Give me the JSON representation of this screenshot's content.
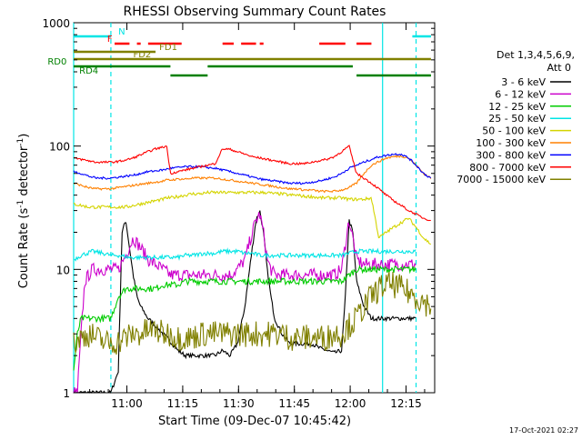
{
  "chart_data": {
    "type": "line",
    "title": "RHESSI Observing Summary Count Rates",
    "xlabel": "Start Time (09-Dec-07 10:45:42)",
    "ylabel_main": "Count Rate (s",
    "ylabel_sup1": "-1",
    "ylabel_mid": " detector",
    "ylabel_sup2": "-1",
    "ylabel_end": ")",
    "x_unit": "minutes after 10:45:42",
    "xlim": [
      0,
      97
    ],
    "ylim": [
      1,
      1000
    ],
    "yscale": "log",
    "x_ticks": [
      {
        "value": 14.3,
        "label": "11:00"
      },
      {
        "value": 29.3,
        "label": "11:15"
      },
      {
        "value": 44.3,
        "label": "11:30"
      },
      {
        "value": 59.3,
        "label": "11:45"
      },
      {
        "value": 74.3,
        "label": "12:00"
      },
      {
        "value": 89.3,
        "label": "12:15"
      }
    ],
    "y_ticks": [
      {
        "value": 1,
        "label": "1"
      },
      {
        "value": 10,
        "label": "10"
      },
      {
        "value": 100,
        "label": "100"
      },
      {
        "value": 1000,
        "label": "1000"
      }
    ],
    "legend": {
      "header1": "Det 1,3,4,5,6,9,",
      "header2": "Att 0",
      "position": "right"
    },
    "footer_timestamp": "17-Oct-2021 02:27",
    "series": [
      {
        "name": "3 - 6 keV",
        "color": "#000000",
        "x": [
          0,
          10,
          12,
          13,
          14,
          15,
          16,
          17,
          18,
          20,
          22,
          24,
          25,
          26,
          27,
          28,
          30,
          32,
          35,
          38,
          40,
          42,
          44,
          46,
          48,
          49,
          50,
          51,
          52,
          53,
          54,
          56,
          58,
          59,
          60,
          62,
          64,
          66,
          68,
          70,
          72,
          73,
          74,
          75,
          76,
          78,
          80,
          84,
          88,
          92
        ],
        "y": [
          1,
          1,
          1.5,
          20,
          25,
          15,
          9,
          6,
          5,
          4,
          3.5,
          3,
          2.8,
          2.6,
          2.4,
          2.2,
          2,
          2,
          2,
          2,
          2.2,
          2,
          2.5,
          5,
          15,
          25,
          30,
          20,
          10,
          6,
          4,
          3,
          2.5,
          2.5,
          2.5,
          2.5,
          2.5,
          2.3,
          2.2,
          2.1,
          2.2,
          6,
          25,
          20,
          8,
          5,
          4,
          4,
          4,
          4
        ]
      },
      {
        "name": "6 - 12 keV",
        "color": "#cc00cc",
        "x": [
          0,
          1,
          2,
          3,
          5,
          8,
          10,
          12,
          14,
          16,
          18,
          20,
          22,
          24,
          25,
          26,
          28,
          30,
          32,
          34,
          36,
          38,
          40,
          42,
          44,
          46,
          48,
          49,
          50,
          51,
          52,
          53,
          54,
          56,
          58,
          60,
          62,
          64,
          66,
          68,
          70,
          72,
          73,
          74,
          75,
          76,
          78,
          80,
          84,
          88,
          92
        ],
        "y": [
          1,
          1,
          3,
          8,
          10,
          10,
          10,
          10,
          13,
          18,
          15,
          12,
          11,
          10,
          9.5,
          9,
          9,
          9,
          9,
          9,
          9,
          9,
          9,
          9,
          10,
          12,
          20,
          25,
          28,
          20,
          12,
          10,
          9,
          9,
          9,
          9,
          9,
          9,
          9,
          9,
          9,
          10,
          16,
          25,
          18,
          12,
          11,
          11,
          11,
          11,
          11
        ]
      },
      {
        "name": "12 - 25 keV",
        "color": "#00cc00",
        "x": [
          0,
          1,
          2,
          5,
          8,
          10,
          12,
          14,
          16,
          18,
          20,
          22,
          24,
          25,
          28,
          30,
          32,
          35,
          38,
          40,
          42,
          44,
          46,
          48,
          50,
          52,
          54,
          56,
          58,
          60,
          62,
          64,
          66,
          68,
          70,
          72,
          74,
          76,
          78,
          80,
          84,
          88,
          92
        ],
        "y": [
          1.5,
          3,
          4,
          4,
          4,
          4,
          6,
          7,
          7,
          7,
          7,
          7,
          7.5,
          7.5,
          7.5,
          8,
          8,
          8,
          8,
          8,
          8,
          8,
          8,
          8,
          8,
          8,
          8,
          8,
          8,
          8,
          8,
          8,
          8,
          8,
          8,
          8,
          9,
          10,
          10,
          10,
          10,
          10,
          10
        ]
      },
      {
        "name": "25 - 50 keV",
        "color": "#00e5e5",
        "x": [
          0,
          2,
          5,
          8,
          10,
          12,
          15,
          18,
          20,
          22,
          24,
          25,
          28,
          30,
          32,
          35,
          38,
          40,
          42,
          44,
          46,
          48,
          50,
          52,
          54,
          56,
          58,
          60,
          62,
          64,
          66,
          68,
          70,
          72,
          74,
          76,
          78,
          80,
          84,
          88,
          92
        ],
        "y": [
          12,
          13,
          14,
          13.5,
          13,
          13,
          12.5,
          12.5,
          12.5,
          12.5,
          12.5,
          12.5,
          12.5,
          13,
          13,
          13.5,
          13.5,
          14,
          14,
          14,
          13.5,
          13.5,
          13,
          13,
          13,
          13,
          13,
          13,
          13,
          13,
          13,
          13,
          13,
          13,
          13.5,
          14,
          14,
          14,
          14,
          14,
          14
        ]
      },
      {
        "name": "50 - 100 keV",
        "color": "#d4d400",
        "x": [
          0,
          2,
          4,
          6,
          8,
          10,
          12,
          14,
          16,
          18,
          20,
          22,
          24,
          25,
          26,
          28,
          30,
          32,
          34,
          36,
          38,
          40,
          42,
          44,
          46,
          48,
          50,
          52,
          54,
          56,
          58,
          60,
          62,
          64,
          66,
          68,
          70,
          72,
          74,
          76,
          78,
          80,
          82,
          84,
          86,
          88,
          90,
          92,
          94,
          96
        ],
        "y": [
          34,
          33,
          32,
          32,
          32,
          32,
          32,
          32,
          33,
          34,
          35,
          36,
          37,
          38,
          38,
          39,
          40,
          41,
          41,
          42,
          42,
          42,
          42,
          42,
          42,
          42,
          42,
          42,
          41,
          41,
          40,
          40,
          39,
          39,
          38,
          38,
          38,
          38,
          37,
          37,
          37,
          38,
          18,
          20,
          22,
          24,
          26,
          22,
          18,
          16
        ]
      },
      {
        "name": "100 - 300 keV",
        "color": "#ff8000",
        "x": [
          0,
          2,
          4,
          6,
          8,
          10,
          12,
          14,
          16,
          18,
          20,
          22,
          24,
          25,
          26,
          28,
          30,
          32,
          34,
          36,
          38,
          40,
          42,
          44,
          46,
          48,
          50,
          52,
          54,
          56,
          58,
          60,
          62,
          64,
          66,
          68,
          70,
          72,
          74,
          76,
          78,
          80,
          82,
          84,
          86,
          88,
          90,
          92,
          94,
          96
        ],
        "y": [
          50,
          48,
          46,
          45,
          45,
          45,
          46,
          47,
          48,
          49,
          50,
          51,
          52,
          53,
          53,
          54,
          54,
          55,
          55,
          55,
          55,
          54,
          53,
          52,
          51,
          50,
          49,
          48,
          47,
          46,
          45,
          45,
          44,
          44,
          43,
          43,
          43,
          44,
          46,
          50,
          60,
          70,
          75,
          80,
          82,
          83,
          80,
          70,
          60,
          55
        ]
      },
      {
        "name": "300 - 800 keV",
        "color": "#0000ff",
        "x": [
          0,
          2,
          4,
          6,
          8,
          10,
          12,
          14,
          16,
          18,
          20,
          22,
          24,
          25,
          26,
          28,
          30,
          32,
          34,
          36,
          38,
          40,
          42,
          44,
          46,
          48,
          50,
          52,
          54,
          56,
          58,
          60,
          62,
          64,
          66,
          68,
          70,
          72,
          74,
          76,
          78,
          80,
          82,
          84,
          86,
          88,
          90,
          92,
          94,
          96
        ],
        "y": [
          62,
          60,
          57,
          55,
          55,
          55,
          56,
          57,
          58,
          60,
          62,
          63,
          64,
          65,
          66,
          67,
          68,
          68,
          68,
          67,
          66,
          64,
          62,
          60,
          58,
          56,
          54,
          53,
          52,
          51,
          50,
          50,
          50,
          51,
          52,
          54,
          56,
          60,
          66,
          70,
          74,
          78,
          82,
          84,
          86,
          86,
          80,
          70,
          60,
          55
        ]
      },
      {
        "name": "800 - 7000 keV",
        "color": "#ff0000",
        "x": [
          0,
          2,
          4,
          6,
          8,
          10,
          12,
          14,
          16,
          18,
          20,
          22,
          24,
          25,
          26,
          28,
          30,
          32,
          34,
          36,
          38,
          40,
          42,
          44,
          46,
          48,
          50,
          52,
          54,
          56,
          58,
          60,
          62,
          64,
          66,
          68,
          70,
          72,
          74,
          76,
          78,
          80,
          82,
          84,
          86,
          88,
          90,
          92,
          94,
          96
        ],
        "y": [
          80,
          78,
          76,
          74,
          74,
          74,
          75,
          77,
          80,
          85,
          90,
          95,
          98,
          100,
          60,
          62,
          64,
          66,
          68,
          70,
          72,
          95,
          94,
          90,
          86,
          82,
          80,
          78,
          76,
          74,
          72,
          72,
          72,
          74,
          76,
          78,
          82,
          90,
          100,
          60,
          55,
          50,
          45,
          40,
          36,
          33,
          30,
          28,
          26,
          25
        ]
      },
      {
        "name": "7000 - 15000 keV",
        "color": "#808000",
        "x": [
          0,
          2,
          4,
          6,
          8,
          10,
          12,
          14,
          16,
          18,
          20,
          22,
          24,
          26,
          28,
          30,
          32,
          34,
          36,
          38,
          40,
          42,
          44,
          46,
          48,
          50,
          52,
          54,
          56,
          58,
          60,
          62,
          64,
          66,
          68,
          70,
          72,
          74,
          76,
          78,
          80,
          82,
          84,
          86,
          88,
          90,
          92,
          94,
          96
        ],
        "y": [
          2.5,
          2.8,
          3,
          2.8,
          2.6,
          2.5,
          2.6,
          2.8,
          3,
          3,
          3.2,
          3.2,
          3,
          3,
          2.8,
          2.8,
          2.8,
          3,
          3,
          3,
          3,
          3,
          3,
          3,
          3,
          3,
          3,
          3,
          3,
          2.8,
          2.8,
          2.8,
          2.8,
          2.8,
          2.8,
          3,
          3,
          3.5,
          4,
          5,
          6,
          7,
          7.5,
          7.5,
          7,
          6.5,
          6,
          5.5,
          5
        ]
      }
    ],
    "annotations": [
      {
        "label": "N",
        "color": "#00e5e5",
        "x": 12,
        "kind": "flag",
        "segments": [
          [
            0,
            10
          ]
        ]
      },
      {
        "label": "N",
        "color": "#00e5e5",
        "x": 0,
        "kind": "flag_unlabeled",
        "segments": [
          [
            91,
            96
          ]
        ]
      },
      {
        "label": "F",
        "color": "#ff0000",
        "x": 9,
        "kind": "flag",
        "segments": [
          [
            11,
            15
          ],
          [
            17,
            18
          ],
          [
            20,
            29
          ],
          [
            40,
            43
          ],
          [
            45,
            49
          ],
          [
            50,
            51
          ],
          [
            66,
            73
          ],
          [
            76,
            80
          ]
        ]
      },
      {
        "label": "FD1",
        "color": "#808000",
        "x": 23,
        "kind": "flag",
        "segments": [
          [
            0,
            22
          ]
        ]
      },
      {
        "label": "FD2",
        "color": "#808000",
        "x": 16,
        "kind": "flag",
        "segments": [
          [
            0,
            96
          ]
        ]
      },
      {
        "label": "RD0",
        "color": "#008000",
        "x": -7,
        "kind": "flag",
        "segments": [
          [
            0,
            26
          ],
          [
            36,
            75
          ]
        ]
      },
      {
        "label": "RD4",
        "color": "#008000",
        "x": 1.5,
        "kind": "flag",
        "segments": [
          [
            26,
            36
          ],
          [
            76,
            96
          ]
        ]
      }
    ],
    "vlines": [
      {
        "x": 0,
        "color": "#00e5e5",
        "style": "solid"
      },
      {
        "x": 10,
        "color": "#00e5e5",
        "style": "dashed"
      },
      {
        "x": 83,
        "color": "#00e5e5",
        "style": "solid"
      },
      {
        "x": 92,
        "color": "#00e5e5",
        "style": "dashed"
      }
    ]
  }
}
